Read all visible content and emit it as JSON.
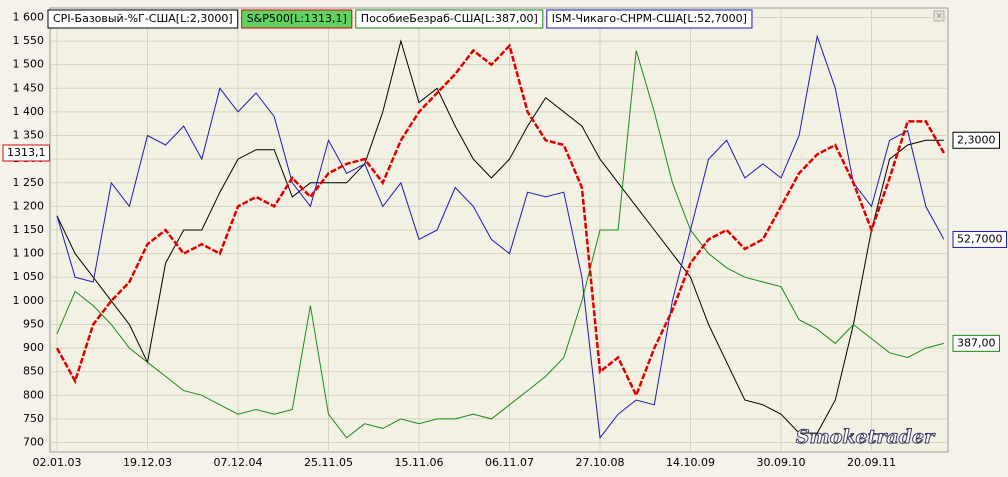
{
  "chart_data": {
    "type": "line",
    "categories": [
      "02.01.03",
      null,
      null,
      null,
      null,
      "19.12.03",
      null,
      null,
      null,
      null,
      "07.12.04",
      null,
      null,
      null,
      null,
      "25.11.05",
      null,
      null,
      null,
      null,
      "15.11.06",
      null,
      null,
      null,
      null,
      "06.11.07",
      null,
      null,
      null,
      null,
      "27.10.08",
      null,
      null,
      null,
      null,
      "14.10.09",
      null,
      null,
      null,
      null,
      "30.09.10",
      null,
      null,
      null,
      null,
      "20.09.11",
      null,
      null,
      null,
      null
    ],
    "ylim": [
      680,
      1620
    ],
    "yticks": [
      700,
      750,
      800,
      850,
      900,
      950,
      {
        "value": 1000,
        "label": "1 000"
      },
      {
        "value": 1050,
        "label": "1 050"
      },
      {
        "value": 1100,
        "label": "1 100"
      },
      {
        "value": 1150,
        "label": "1 150"
      },
      {
        "value": 1200,
        "label": "1 200"
      },
      {
        "value": 1250,
        "label": "1 250"
      },
      {
        "value": 1300,
        "label": "1 300"
      },
      {
        "value": 1350,
        "label": "1 350"
      },
      {
        "value": 1400,
        "label": "1 400"
      },
      {
        "value": 1450,
        "label": "1 450"
      },
      {
        "value": 1500,
        "label": "1 500"
      },
      {
        "value": 1550,
        "label": "1 550"
      },
      {
        "value": 1600,
        "label": "1 600"
      }
    ],
    "grid": true,
    "watermark": "Smoketrader",
    "series": [
      {
        "name": "CPI-Базовый-%Г-США[L:2,3000]",
        "color": "#000000",
        "end_label": "2,3000",
        "end_side": "right",
        "values": [
          1180,
          1100,
          1050,
          1000,
          950,
          870,
          1080,
          1150,
          1150,
          1230,
          1300,
          1320,
          1320,
          1220,
          1250,
          1250,
          1250,
          1290,
          1400,
          1550,
          1420,
          1450,
          1370,
          1300,
          1260,
          1300,
          1370,
          1430,
          1400,
          1370,
          1300,
          1250,
          1200,
          1150,
          1100,
          1050,
          950,
          870,
          790,
          780,
          760,
          720,
          720,
          790,
          950,
          1150,
          1300,
          1330,
          1340,
          1340
        ]
      },
      {
        "name": "S&P500[L:1313,1]",
        "color": "#e00000",
        "legend_fill": "#5fd35f",
        "dashed": true,
        "end_label": "1313,1",
        "end_side": "left",
        "values": [
          900,
          830,
          950,
          1000,
          1040,
          1120,
          1150,
          1100,
          1120,
          1100,
          1200,
          1220,
          1200,
          1260,
          1220,
          1270,
          1290,
          1300,
          1250,
          1340,
          1400,
          1440,
          1480,
          1530,
          1500,
          1540,
          1400,
          1340,
          1330,
          1240,
          850,
          880,
          800,
          900,
          980,
          1080,
          1130,
          1150,
          1110,
          1130,
          1200,
          1270,
          1310,
          1330,
          1250,
          1150,
          1260,
          1380,
          1380,
          1313
        ]
      },
      {
        "name": "ПособиеБезраб-США[L:387,00]",
        "color": "#1a8a1a",
        "end_label": "387,00",
        "end_side": "right",
        "values": [
          930,
          1020,
          990,
          950,
          900,
          870,
          840,
          810,
          800,
          780,
          760,
          770,
          760,
          770,
          990,
          760,
          710,
          740,
          730,
          750,
          740,
          750,
          750,
          760,
          750,
          780,
          810,
          840,
          880,
          1000,
          1150,
          1150,
          1530,
          1400,
          1250,
          1150,
          1100,
          1070,
          1050,
          1040,
          1030,
          960,
          940,
          910,
          950,
          920,
          890,
          880,
          900,
          910
        ]
      },
      {
        "name": "ISM-Чикаго-CHPM-США[L:52,7000]",
        "color": "#1a1ab4",
        "end_label": "52,7000",
        "end_side": "right",
        "values": [
          1180,
          1050,
          1040,
          1250,
          1200,
          1350,
          1330,
          1370,
          1300,
          1450,
          1400,
          1440,
          1390,
          1250,
          1200,
          1340,
          1270,
          1290,
          1200,
          1250,
          1130,
          1150,
          1240,
          1200,
          1130,
          1100,
          1230,
          1220,
          1230,
          1050,
          710,
          760,
          790,
          780,
          1000,
          1150,
          1300,
          1340,
          1260,
          1290,
          1260,
          1350,
          1560,
          1450,
          1250,
          1200,
          1340,
          1360,
          1200,
          1130
        ]
      }
    ]
  }
}
